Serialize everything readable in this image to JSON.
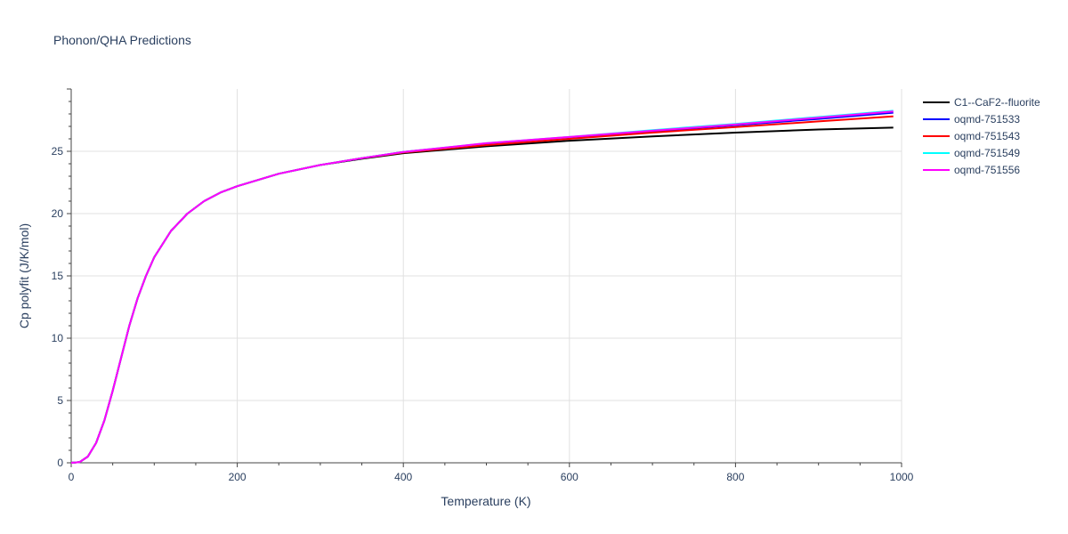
{
  "chart_data": {
    "type": "line",
    "title": "Phonon/QHA Predictions",
    "xlabel": "Temperature (K)",
    "ylabel": "Cp polyfit (J/K/mol)",
    "xlim": [
      0,
      1000
    ],
    "ylim": [
      0,
      30
    ],
    "x_ticks": [
      0,
      200,
      400,
      600,
      800,
      1000
    ],
    "y_ticks": [
      0,
      5,
      10,
      15,
      20,
      25
    ],
    "grid": true,
    "legend_position": "right",
    "series": [
      {
        "name": "C1--CaF2--fluorite",
        "color": "#000000",
        "x": [
          0,
          10,
          20,
          30,
          40,
          50,
          60,
          70,
          80,
          90,
          100,
          120,
          140,
          160,
          180,
          200,
          250,
          300,
          350,
          400,
          500,
          600,
          700,
          800,
          900,
          990
        ],
        "y": [
          0,
          0.05,
          0.5,
          1.6,
          3.4,
          5.8,
          8.4,
          11.0,
          13.2,
          15.0,
          16.5,
          18.6,
          20.0,
          21.0,
          21.7,
          22.2,
          23.2,
          23.9,
          24.4,
          24.85,
          25.4,
          25.85,
          26.2,
          26.5,
          26.75,
          26.9
        ]
      },
      {
        "name": "oqmd-751533",
        "color": "#0000ff",
        "x": [
          0,
          10,
          20,
          30,
          40,
          50,
          60,
          70,
          80,
          90,
          100,
          120,
          140,
          160,
          180,
          200,
          250,
          300,
          350,
          400,
          500,
          600,
          700,
          800,
          900,
          990
        ],
        "y": [
          0,
          0.05,
          0.5,
          1.6,
          3.4,
          5.8,
          8.4,
          11.0,
          13.2,
          15.0,
          16.5,
          18.6,
          20.0,
          21.0,
          21.7,
          22.2,
          23.2,
          23.9,
          24.45,
          24.95,
          25.6,
          26.1,
          26.6,
          27.1,
          27.6,
          28.1
        ]
      },
      {
        "name": "oqmd-751543",
        "color": "#ff0000",
        "x": [
          0,
          10,
          20,
          30,
          40,
          50,
          60,
          70,
          80,
          90,
          100,
          120,
          140,
          160,
          180,
          200,
          250,
          300,
          350,
          400,
          500,
          600,
          700,
          800,
          900,
          990
        ],
        "y": [
          0,
          0.05,
          0.5,
          1.6,
          3.4,
          5.8,
          8.4,
          11.0,
          13.2,
          15.0,
          16.5,
          18.6,
          20.0,
          21.0,
          21.7,
          22.2,
          23.2,
          23.9,
          24.45,
          24.9,
          25.5,
          26.0,
          26.5,
          26.95,
          27.4,
          27.8
        ]
      },
      {
        "name": "oqmd-751549",
        "color": "#00ffff",
        "x": [
          0,
          10,
          20,
          30,
          40,
          50,
          60,
          70,
          80,
          90,
          100,
          120,
          140,
          160,
          180,
          200,
          250,
          300,
          350,
          400,
          500,
          600,
          700,
          800,
          900,
          990
        ],
        "y": [
          0,
          0.05,
          0.5,
          1.6,
          3.4,
          5.8,
          8.4,
          11.0,
          13.2,
          15.0,
          16.5,
          18.6,
          20.0,
          21.0,
          21.7,
          22.2,
          23.2,
          23.9,
          24.45,
          24.95,
          25.65,
          26.15,
          26.7,
          27.2,
          27.75,
          28.25
        ]
      },
      {
        "name": "oqmd-751556",
        "color": "#ff00ff",
        "x": [
          0,
          10,
          20,
          30,
          40,
          50,
          60,
          70,
          80,
          90,
          100,
          120,
          140,
          160,
          180,
          200,
          250,
          300,
          350,
          400,
          500,
          600,
          700,
          800,
          900,
          990
        ],
        "y": [
          0,
          0.05,
          0.5,
          1.6,
          3.4,
          5.8,
          8.4,
          11.0,
          13.2,
          15.0,
          16.5,
          18.6,
          20.0,
          21.0,
          21.7,
          22.2,
          23.2,
          23.9,
          24.45,
          24.95,
          25.65,
          26.15,
          26.65,
          27.15,
          27.7,
          28.2
        ]
      }
    ]
  }
}
